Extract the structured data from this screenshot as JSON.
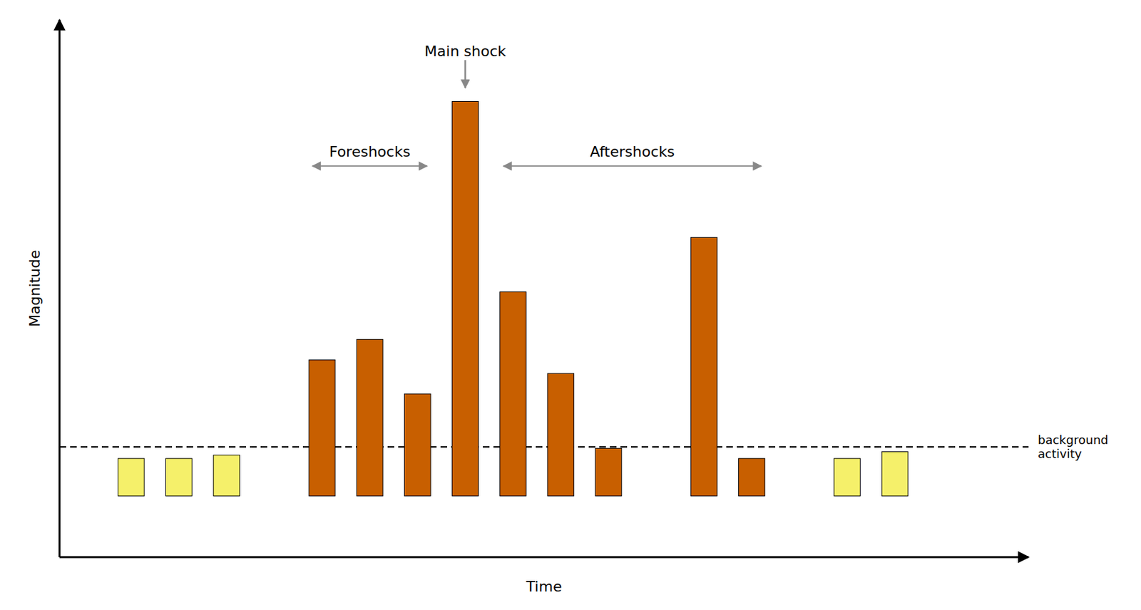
{
  "chart_data": {
    "type": "bar",
    "x": [
      1,
      2,
      3,
      5,
      6,
      7,
      8,
      9,
      10,
      11,
      13,
      14,
      16,
      17
    ],
    "values": [
      0.55,
      0.55,
      0.6,
      2.0,
      2.3,
      1.5,
      5.8,
      3.0,
      1.8,
      0.7,
      3.8,
      0.55,
      0.55,
      0.65
    ],
    "colors": [
      "#f5f06a",
      "#f5f06a",
      "#f5f06a",
      "#c85f00",
      "#c85f00",
      "#c85f00",
      "#c85f00",
      "#c85f00",
      "#c85f00",
      "#c85f00",
      "#c85f00",
      "#c85f00",
      "#f5f06a",
      "#f5f06a"
    ],
    "xlabel": "Time",
    "ylabel": "Magnitude",
    "xlim": [
      -0.5,
      19.8
    ],
    "ylim": [
      -0.9,
      7.0
    ],
    "tick_labels": false,
    "grid": false,
    "reference_lines": [
      {
        "value": 0.72,
        "label": "background\nactivity",
        "line_style": "dashed"
      }
    ],
    "annotations": [
      {
        "text": "Main shock",
        "x": 8,
        "y": 6.0
      },
      {
        "text": "Foreshocks",
        "x_range": [
          4.8,
          7.2
        ],
        "y": 4.85
      },
      {
        "text": "Aftershocks",
        "x_range": [
          8.8,
          14.2
        ],
        "y": 4.85
      }
    ]
  }
}
